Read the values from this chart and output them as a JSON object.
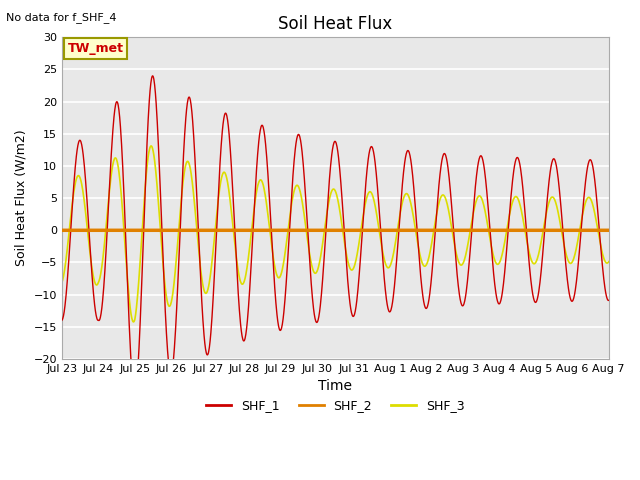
{
  "title": "Soil Heat Flux",
  "xlabel": "Time",
  "ylabel": "Soil Heat Flux (W/m2)",
  "ylim": [
    -20,
    30
  ],
  "yticks": [
    -20,
    -15,
    -10,
    -5,
    0,
    5,
    10,
    15,
    20,
    25,
    30
  ],
  "no_data_text": "No data for f_SHF_4",
  "annotation_text": "TW_met",
  "annotation_color": "#cc0000",
  "annotation_bg": "#ffffcc",
  "annotation_border": "#999900",
  "plot_bg_color": "#e8e8e8",
  "fig_bg_color": "#ffffff",
  "series_colors": [
    "#cc0000",
    "#e08000",
    "#dddd00"
  ],
  "series_names": [
    "SHF_1",
    "SHF_2",
    "SHF_3"
  ],
  "n_days": 15,
  "points_per_day": 96,
  "tick_labels": [
    "Jul 23",
    "Jul 24",
    "Jul 25",
    "Jul 26",
    "Jul 27",
    "Jul 28",
    "Jul 29",
    "Jul 30",
    "Jul 31",
    "Aug 1",
    "Aug 2",
    "Aug 3",
    "Aug 4",
    "Aug 5",
    "Aug 6",
    "Aug 7"
  ]
}
